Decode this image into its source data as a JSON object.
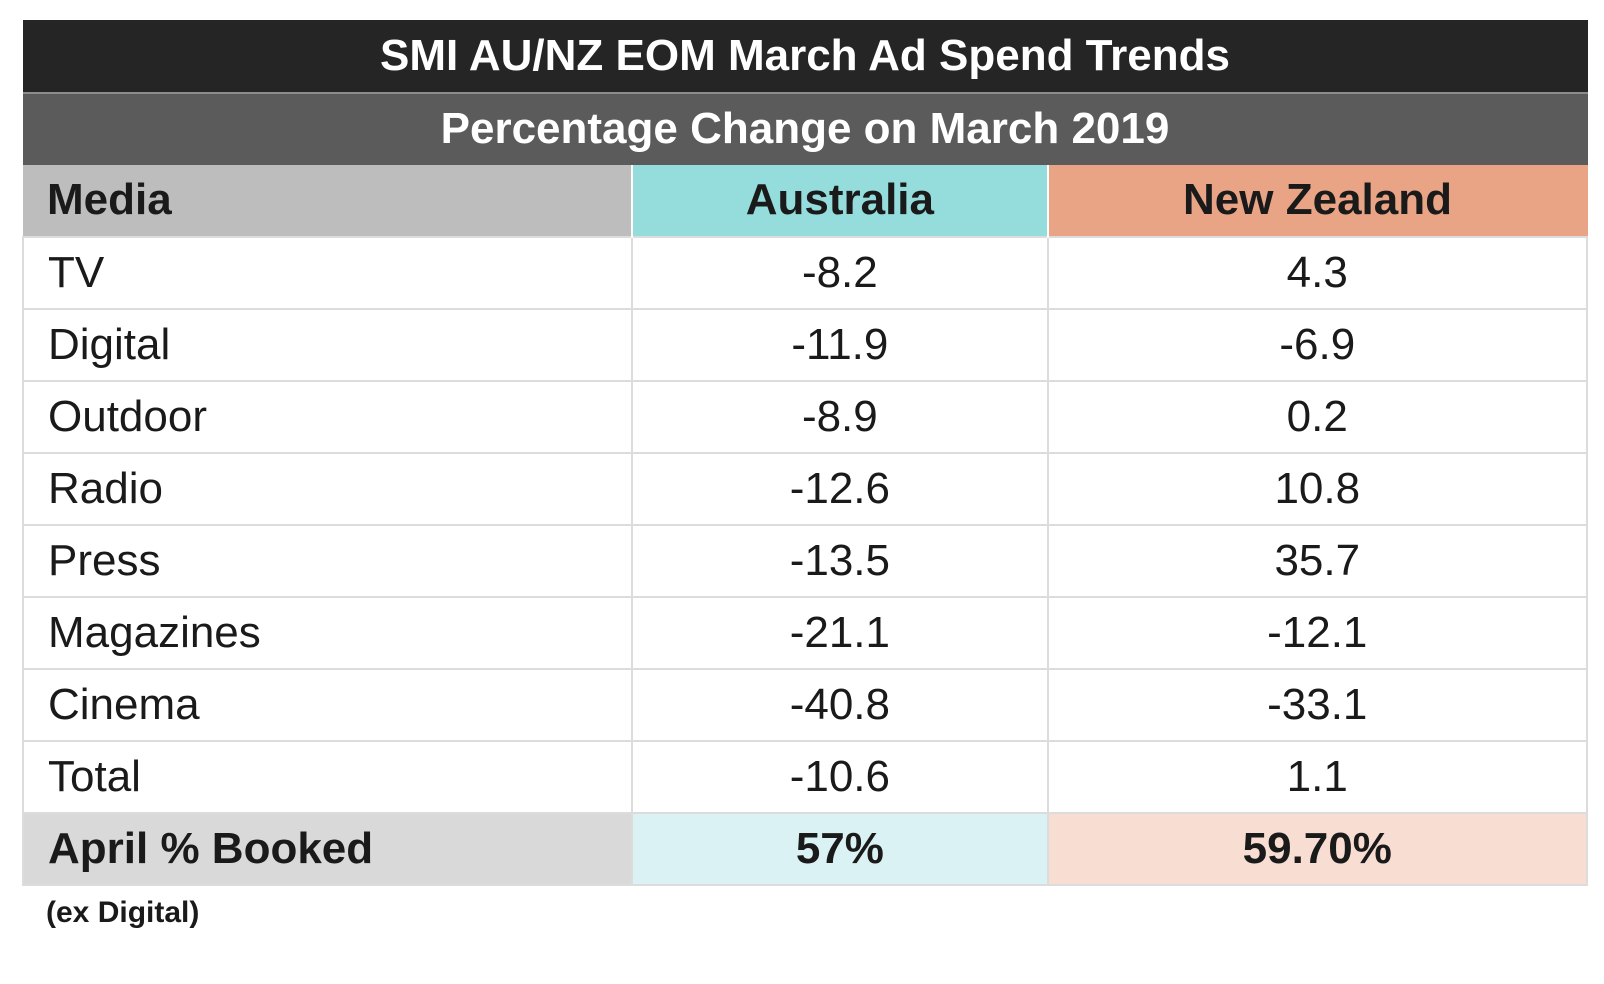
{
  "chart_data": {
    "type": "table",
    "title": "SMI AU/NZ EOM March Ad Spend Trends",
    "subtitle": "Percentage Change on March 2019",
    "columns": [
      "Media",
      "Australia",
      "New Zealand"
    ],
    "rows": [
      {
        "media": "TV",
        "australia": "-8.2",
        "new_zealand": "4.3"
      },
      {
        "media": "Digital",
        "australia": "-11.9",
        "new_zealand": "-6.9"
      },
      {
        "media": "Outdoor",
        "australia": "-8.9",
        "new_zealand": "0.2"
      },
      {
        "media": "Radio",
        "australia": "-12.6",
        "new_zealand": "10.8"
      },
      {
        "media": "Press",
        "australia": "-13.5",
        "new_zealand": "35.7"
      },
      {
        "media": "Magazines",
        "australia": "-21.1",
        "new_zealand": "-12.1"
      },
      {
        "media": "Cinema",
        "australia": "-40.8",
        "new_zealand": "-33.1"
      },
      {
        "media": "Total",
        "australia": "-10.6",
        "new_zealand": "1.1"
      }
    ],
    "booked": {
      "label": "April % Booked",
      "australia": "57%",
      "new_zealand": "59.70%"
    },
    "footnote": "(ex Digital)"
  },
  "colors": {
    "title_bg": "#252525",
    "subtitle_bg": "#5b5b5b",
    "media_header_bg": "#bdbdbd",
    "australia_header_bg": "#95dcdd",
    "new_zealand_header_bg": "#e9a486",
    "booked_media_bg": "#d9d9d9",
    "booked_australia_bg": "#daf2f4",
    "booked_new_zealand_bg": "#f8ddd2"
  }
}
